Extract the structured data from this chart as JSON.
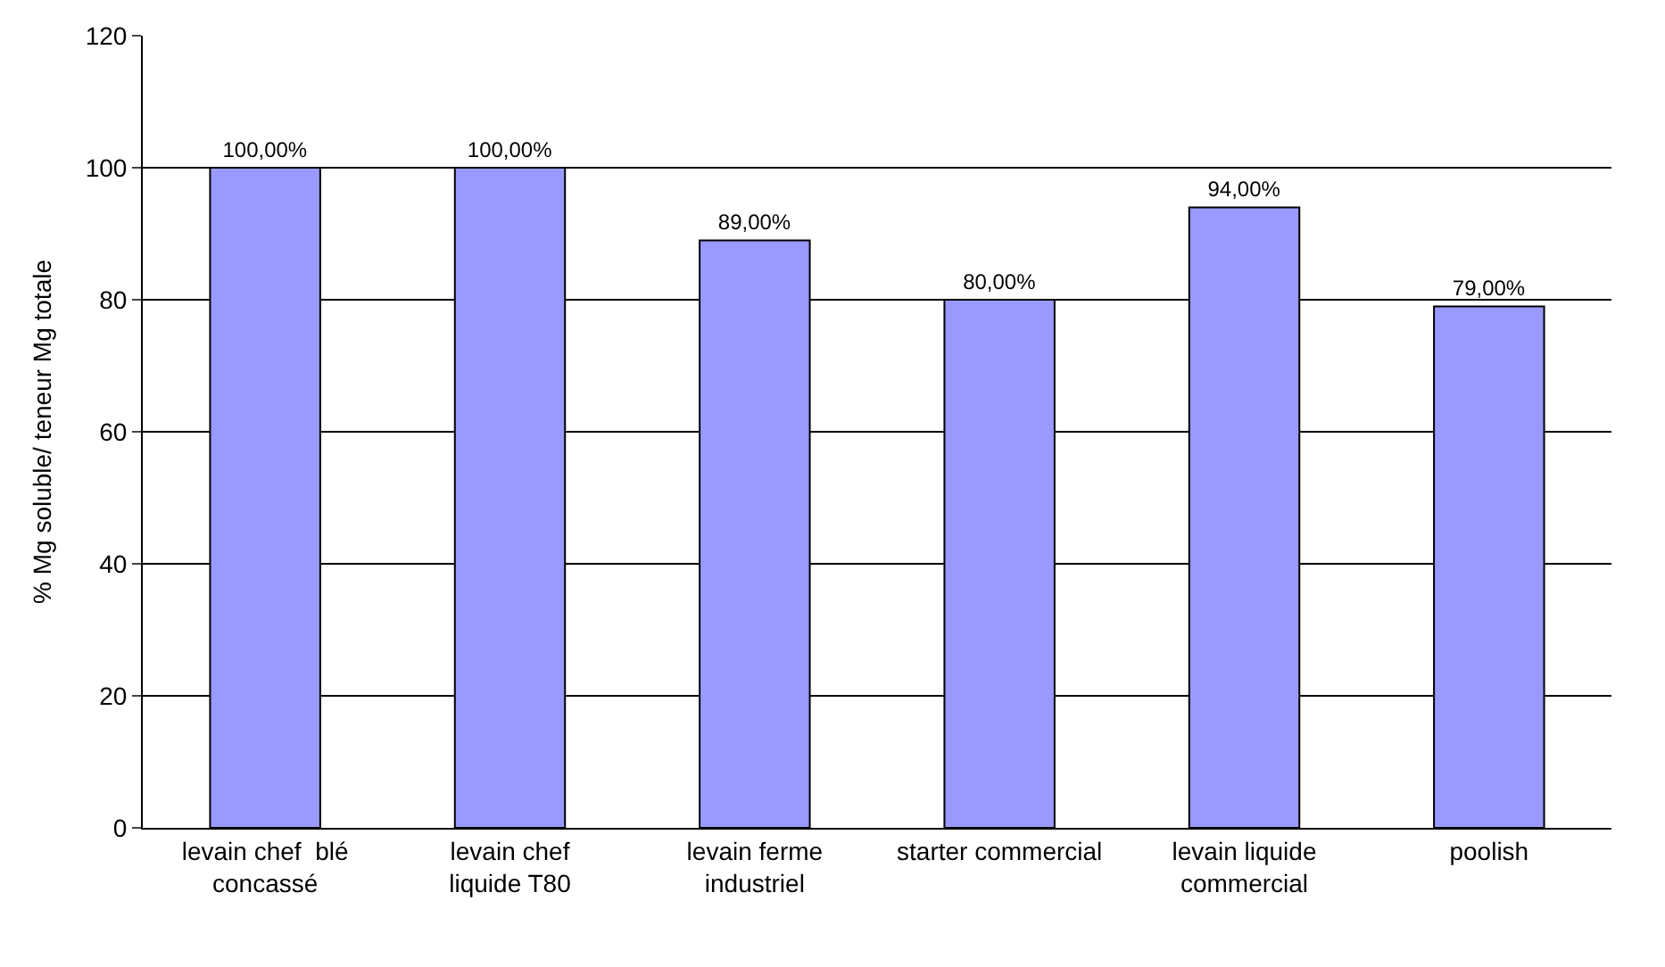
{
  "chart_data": {
    "type": "bar",
    "ylabel": "% Mg soluble/ teneur Mg totale",
    "categories": [
      "levain chef  blé concassé",
      "levain chef liquide T80",
      "levain ferme industriel",
      "starter commercial",
      "levain liquide commercial",
      "poolish"
    ],
    "values": [
      100,
      100,
      89,
      80,
      94,
      79
    ],
    "value_labels": [
      "100,00%",
      "100,00%",
      "89,00%",
      "80,00%",
      "94,00%",
      "79,00%"
    ],
    "color": "#9999ff",
    "ylim": [
      0,
      120
    ],
    "yticks": [
      0,
      20,
      40,
      60,
      80,
      100,
      120
    ],
    "grid": "y"
  }
}
